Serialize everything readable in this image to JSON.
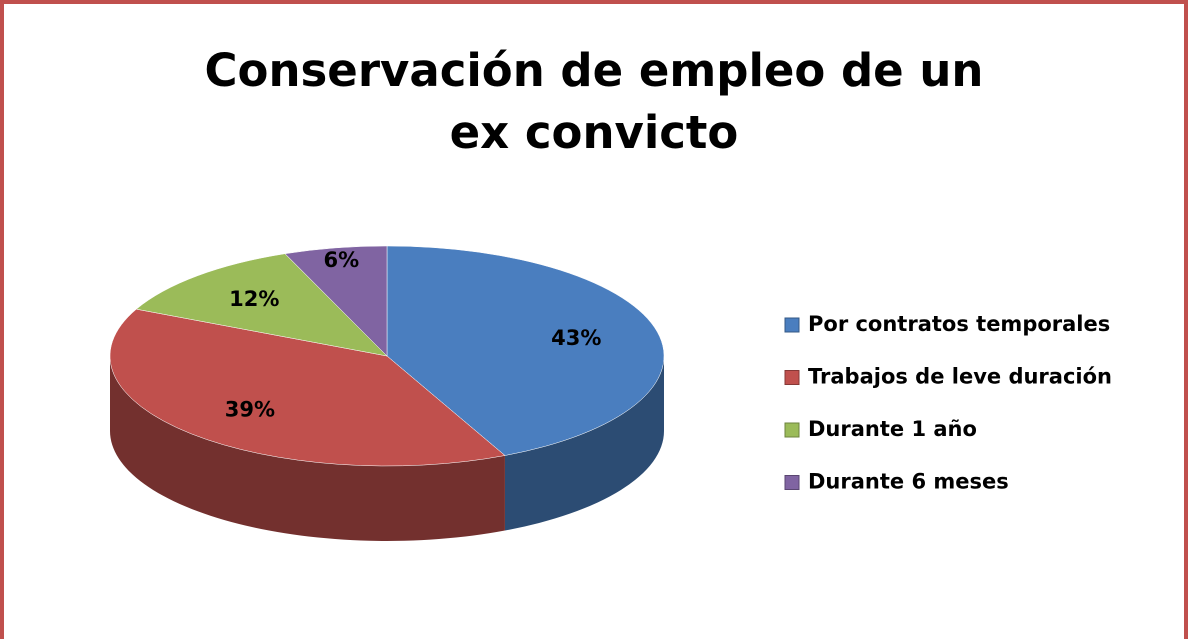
{
  "chart_data": {
    "type": "pie",
    "title": "Conservación de empleo de un ex convicto",
    "categories": [
      "Por contratos temporales",
      "Trabajos de leve duración",
      "Durante 1 año",
      "Durante 6 meses"
    ],
    "values": [
      43,
      39,
      12,
      6
    ],
    "value_labels": [
      "43%",
      "39%",
      "12%",
      "6%"
    ],
    "colors": [
      "#4a7ebf",
      "#c0504d",
      "#9bbb59",
      "#8064a2"
    ],
    "legend": "right"
  }
}
